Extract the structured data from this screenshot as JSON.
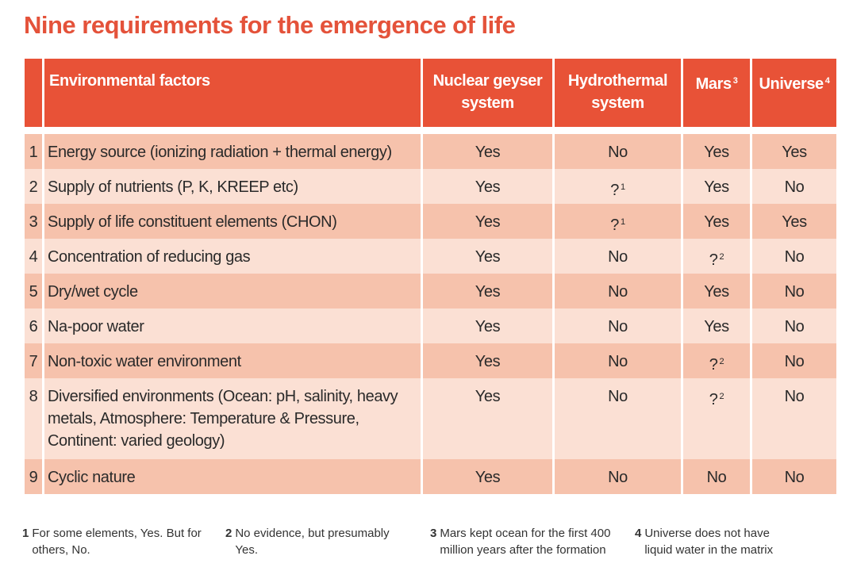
{
  "title": "Nine requirements for the emergence of life",
  "table": {
    "header": [
      {
        "text": "Environmental factors"
      },
      {
        "text": "Nuclear geyser system"
      },
      {
        "text": "Hydrothermal system"
      },
      {
        "text": "Mars",
        "note": "3"
      },
      {
        "text": "Universe",
        "note": "4"
      }
    ],
    "rows": [
      {
        "number": "1",
        "factor": "Energy source (ionizing radiation + thermal energy)",
        "cells": [
          {
            "text": "Yes"
          },
          {
            "text": "No"
          },
          {
            "text": "Yes"
          },
          {
            "text": "Yes"
          }
        ]
      },
      {
        "number": "2",
        "factor": "Supply of nutrients (P, K, KREEP etc)",
        "cells": [
          {
            "text": "Yes"
          },
          {
            "text": "?",
            "note": "1"
          },
          {
            "text": "Yes"
          },
          {
            "text": "No"
          }
        ]
      },
      {
        "number": "3",
        "factor": "Supply of life constituent elements (CHON)",
        "cells": [
          {
            "text": "Yes"
          },
          {
            "text": "?",
            "note": "1"
          },
          {
            "text": "Yes"
          },
          {
            "text": "Yes"
          }
        ]
      },
      {
        "number": "4",
        "factor": "Concentration of reducing gas",
        "cells": [
          {
            "text": "Yes"
          },
          {
            "text": "No"
          },
          {
            "text": "?",
            "note": "2"
          },
          {
            "text": "No"
          }
        ]
      },
      {
        "number": "5",
        "factor": "Dry/wet cycle",
        "cells": [
          {
            "text": "Yes"
          },
          {
            "text": "No"
          },
          {
            "text": "Yes"
          },
          {
            "text": "No"
          }
        ]
      },
      {
        "number": "6",
        "factor": "Na-poor water",
        "cells": [
          {
            "text": "Yes"
          },
          {
            "text": "No"
          },
          {
            "text": "Yes"
          },
          {
            "text": "No"
          }
        ]
      },
      {
        "number": "7",
        "factor": "Non-toxic water environment",
        "cells": [
          {
            "text": "Yes"
          },
          {
            "text": "No"
          },
          {
            "text": "?",
            "note": "2"
          },
          {
            "text": "No"
          }
        ]
      },
      {
        "number": "8",
        "factor": "Diversified environments (Ocean: pH, salinity, heavy metals, Atmosphere: Temperature & Pressure, Continent: varied geology)",
        "cells": [
          {
            "text": "Yes"
          },
          {
            "text": "No"
          },
          {
            "text": "?",
            "note": "2"
          },
          {
            "text": "No"
          }
        ]
      },
      {
        "number": "9",
        "factor": "Cyclic nature",
        "cells": [
          {
            "text": "Yes"
          },
          {
            "text": "No"
          },
          {
            "text": "No"
          },
          {
            "text": "No"
          }
        ]
      }
    ]
  },
  "footnotes": [
    {
      "number": "1",
      "text": "For some elements, Yes. But for others, No."
    },
    {
      "number": "2",
      "text": "No evidence, but presumably Yes."
    },
    {
      "number": "3",
      "text": "Mars kept ocean for the first 400 million years after the formation"
    },
    {
      "number": "4",
      "text": "Universe does not have liquid water in the matrix"
    }
  ]
}
